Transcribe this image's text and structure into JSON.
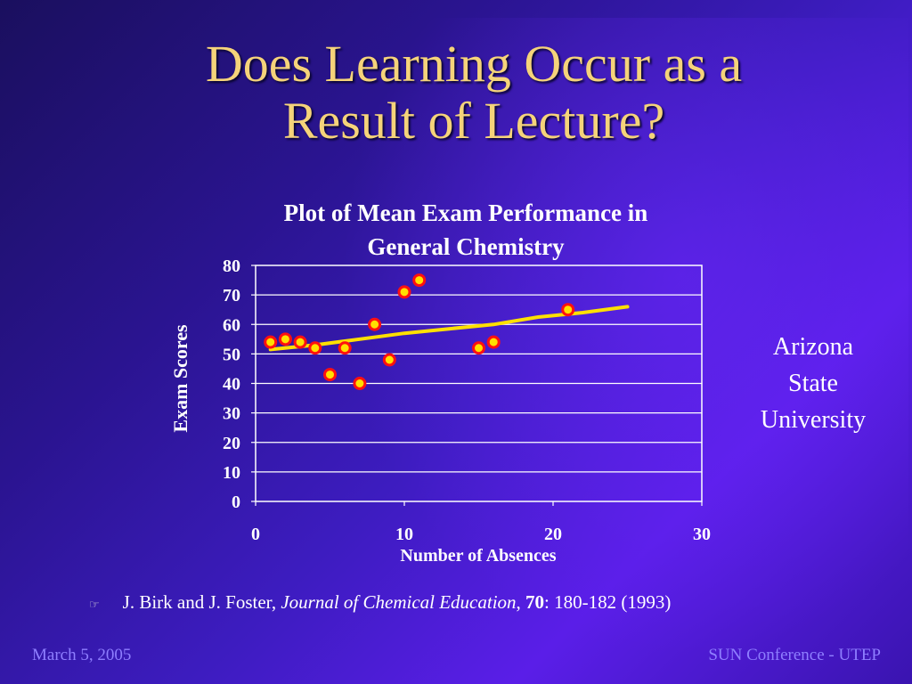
{
  "slide": {
    "title_line1": "Does Learning Occur as a",
    "title_line2": "Result of Lecture?",
    "side_text": [
      "Arizona",
      "State",
      "University"
    ],
    "citation": {
      "authors": "J. Birk and J. Foster, ",
      "journal": "Journal of Chemical Education",
      "sep": ", ",
      "volume": "70",
      "pages": ": 180-182 (1993)"
    },
    "footer_left": "March 5, 2005",
    "footer_right": "SUN Conference - UTEP"
  },
  "colors": {
    "title": "#f5d37a",
    "point_fill": "#ffe000",
    "point_stroke": "#ff1010",
    "trend": "#ffe000",
    "footer": "#8f7fff"
  },
  "chart_data": {
    "type": "scatter",
    "title_line1": "Plot of Mean Exam Performance in",
    "title_line2": "General Chemistry",
    "xlabel": "Number of Absences",
    "ylabel": "Exam Scores",
    "xlim": [
      0,
      30
    ],
    "ylim": [
      0,
      80
    ],
    "xticks": [
      0,
      10,
      20,
      30
    ],
    "yticks": [
      0,
      10,
      20,
      30,
      40,
      50,
      60,
      70,
      80
    ],
    "grid": "horizontal",
    "points": [
      {
        "x": 1,
        "y": 54
      },
      {
        "x": 2,
        "y": 55
      },
      {
        "x": 3,
        "y": 54
      },
      {
        "x": 4,
        "y": 52
      },
      {
        "x": 5,
        "y": 43
      },
      {
        "x": 6,
        "y": 52
      },
      {
        "x": 7,
        "y": 40
      },
      {
        "x": 8,
        "y": 60
      },
      {
        "x": 9,
        "y": 48
      },
      {
        "x": 10,
        "y": 71
      },
      {
        "x": 11,
        "y": 75
      },
      {
        "x": 15,
        "y": 52
      },
      {
        "x": 16,
        "y": 54
      },
      {
        "x": 21,
        "y": 65
      }
    ],
    "trendline": [
      {
        "x": 1,
        "y": 51.5
      },
      {
        "x": 4,
        "y": 53
      },
      {
        "x": 7,
        "y": 55
      },
      {
        "x": 10,
        "y": 57
      },
      {
        "x": 13,
        "y": 58.5
      },
      {
        "x": 16,
        "y": 60
      },
      {
        "x": 19,
        "y": 62.5
      },
      {
        "x": 22,
        "y": 64
      },
      {
        "x": 25,
        "y": 66
      }
    ]
  }
}
